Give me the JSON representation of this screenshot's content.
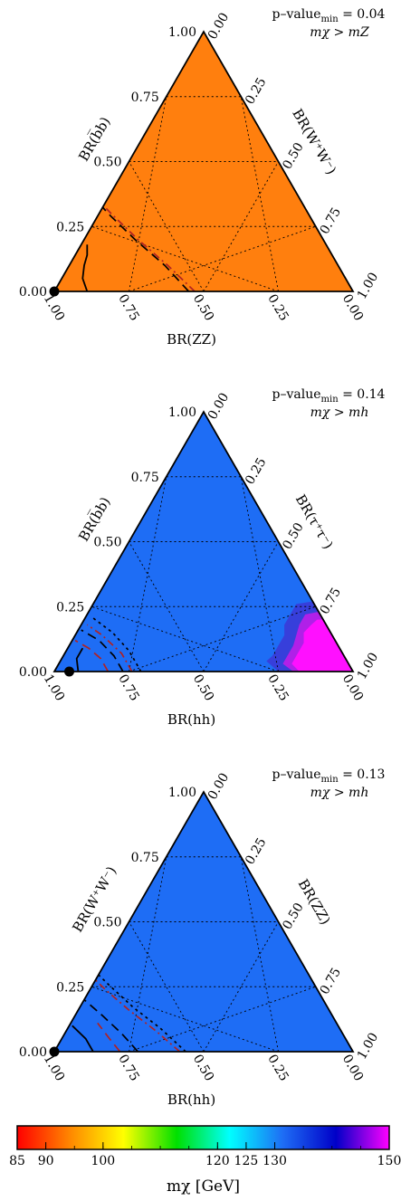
{
  "chart_data": [
    {
      "type": "ternary",
      "panel": "top",
      "fill_color": "#ff7f0e",
      "annotation_line1": "p–value",
      "annotation_sub": "min",
      "annotation_value": " = 0.04",
      "annotation_line2": "mχ > mZ",
      "left_axis_label": "BR(b̅b)",
      "right_axis_label": "BR(W⁺W⁻)",
      "bottom_axis_label": "BR(ZZ)",
      "left_ticks": [
        "0.00",
        "0.25",
        "0.50",
        "0.75",
        "1.00"
      ],
      "right_ticks": [
        "0.00",
        "0.25",
        "0.50",
        "0.75",
        "1.00"
      ],
      "bottom_ticks": [
        "1.00",
        "0.75",
        "0.50",
        "0.25",
        "0.00"
      ],
      "best_fit_point": {
        "bottom_axis_fraction": 1.0,
        "left_axis_fraction": 0.0
      },
      "contours": [
        {
          "style": "solid",
          "color": "#000000",
          "points": [
            [
              0.89,
              0.0
            ],
            [
              0.88,
              0.05
            ],
            [
              0.85,
              0.1
            ],
            [
              0.82,
              0.14
            ],
            [
              0.8,
              0.18
            ]
          ]
        },
        {
          "style": "dashed",
          "color": "#000000",
          "points": [
            [
              0.55,
              0.0
            ],
            [
              0.58,
              0.1
            ],
            [
              0.63,
              0.2
            ],
            [
              0.67,
              0.3
            ],
            [
              0.69,
              0.38
            ],
            [
              0.72,
              0.44
            ],
            [
              0.74,
              0.48
            ]
          ]
        },
        {
          "style": "dashdot",
          "color": "#b22222",
          "points": [
            [
              0.53,
              0.0
            ],
            [
              0.57,
              0.1
            ],
            [
              0.62,
              0.2
            ],
            [
              0.66,
              0.3
            ],
            [
              0.68,
              0.36
            ]
          ]
        }
      ]
    },
    {
      "type": "ternary",
      "panel": "middle",
      "fill_color": "#1e6df5",
      "annotation_line1": "p–value",
      "annotation_sub": "min",
      "annotation_value": " = 0.14",
      "annotation_line2": "mχ > mh",
      "left_axis_label": "BR(b̅b)",
      "right_axis_label": "BR(τ⁺τ⁻)",
      "bottom_axis_label": "BR(hh)",
      "left_ticks": [
        "0.00",
        "0.25",
        "0.50",
        "0.75",
        "1.00"
      ],
      "right_ticks": [
        "0.00",
        "0.25",
        "0.50",
        "0.75",
        "1.00"
      ],
      "bottom_ticks": [
        "1.00",
        "0.75",
        "0.50",
        "0.25",
        "0.00"
      ],
      "best_fit_point": {
        "bottom_axis_fraction": 0.95,
        "left_axis_fraction": 0.0
      },
      "high_mass_region": "magenta region near the BR(τ⁺τ⁻) = 1 corner",
      "contours": [
        {
          "style": "solid",
          "color": "#000000",
          "points": [
            [
              0.92,
              0.0
            ],
            [
              0.9,
              0.05
            ],
            [
              0.86,
              0.09
            ]
          ]
        },
        {
          "style": "dashed",
          "color": "#b22222",
          "points": [
            [
              0.82,
              0.0
            ],
            [
              0.82,
              0.05
            ],
            [
              0.84,
              0.09
            ],
            [
              0.87,
              0.12
            ]
          ]
        },
        {
          "style": "dashed",
          "color": "#000000",
          "points": [
            [
              0.77,
              0.0
            ],
            [
              0.77,
              0.06
            ],
            [
              0.79,
              0.12
            ],
            [
              0.83,
              0.16
            ]
          ]
        },
        {
          "style": "dashdot",
          "color": "#b22222",
          "points": [
            [
              0.74,
              0.0
            ],
            [
              0.74,
              0.07
            ],
            [
              0.77,
              0.14
            ],
            [
              0.8,
              0.18
            ]
          ]
        },
        {
          "style": "dotted",
          "color": "#000000",
          "points": [
            [
              0.71,
              0.0
            ],
            [
              0.71,
              0.08
            ],
            [
              0.73,
              0.15
            ],
            [
              0.77,
              0.21
            ]
          ]
        }
      ]
    },
    {
      "type": "ternary",
      "panel": "bottom",
      "fill_color": "#1e6df5",
      "annotation_line1": "p–value",
      "annotation_sub": "min",
      "annotation_value": " = 0.13",
      "annotation_line2": "mχ > mh",
      "left_axis_label": "BR(W⁺W⁻)",
      "right_axis_label": "BR(ZZ)",
      "bottom_axis_label": "BR(hh)",
      "left_ticks": [
        "0.00",
        "0.25",
        "0.50",
        "0.75",
        "1.00"
      ],
      "right_ticks": [
        "0.00",
        "0.25",
        "0.50",
        "0.75",
        "1.00"
      ],
      "bottom_ticks": [
        "1.00",
        "0.75",
        "0.50",
        "0.25",
        "0.00"
      ],
      "best_fit_point": {
        "bottom_axis_fraction": 1.0,
        "left_axis_fraction": 0.0
      },
      "contours": [
        {
          "style": "solid",
          "color": "#000000",
          "points": [
            [
              0.87,
              0.0
            ],
            [
              0.87,
              0.05
            ],
            [
              0.89,
              0.1
            ]
          ]
        },
        {
          "style": "dashed",
          "color": "#b22222",
          "points": [
            [
              0.78,
              0.0
            ],
            [
              0.79,
              0.05
            ],
            [
              0.8,
              0.11
            ]
          ]
        },
        {
          "style": "dashed",
          "color": "#000000",
          "points": [
            [
              0.72,
              0.0
            ],
            [
              0.74,
              0.07
            ],
            [
              0.77,
              0.14
            ],
            [
              0.8,
              0.2
            ]
          ]
        },
        {
          "style": "dashdot",
          "color": "#b22222",
          "points": [
            [
              0.58,
              0.0
            ],
            [
              0.62,
              0.08
            ],
            [
              0.67,
              0.16
            ],
            [
              0.71,
              0.24
            ],
            [
              0.73,
              0.29
            ]
          ]
        },
        {
          "style": "dotted",
          "color": "#000000",
          "points": [
            [
              0.56,
              0.0
            ],
            [
              0.6,
              0.09
            ],
            [
              0.65,
              0.17
            ],
            [
              0.69,
              0.26
            ],
            [
              0.71,
              0.31
            ]
          ]
        }
      ]
    }
  ],
  "colorbar": {
    "label": "mχ [GeV]",
    "ticks": [
      85,
      90,
      100,
      120,
      125,
      130,
      150
    ],
    "tick_labels": [
      "85",
      "90",
      "100",
      "120",
      "125",
      "130",
      "150"
    ],
    "range": [
      85,
      150
    ],
    "colors": [
      "#ff0000",
      "#ff8800",
      "#ffff00",
      "#00e000",
      "#00ffff",
      "#1e6df5",
      "#0000c8",
      "#ff00ff"
    ]
  }
}
